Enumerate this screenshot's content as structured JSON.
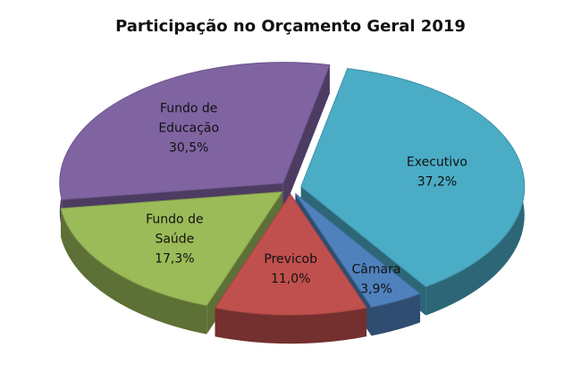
{
  "chart_data": {
    "type": "pie",
    "title": "Participação no Orçamento Geral 2019",
    "categories": [
      "Executivo",
      "Câmara",
      "Previcob",
      "Fundo de Saúde",
      "Fundo de Educação"
    ],
    "values": [
      37.2,
      3.9,
      11.0,
      17.3,
      30.5
    ],
    "value_labels": [
      "37,2%",
      "3,9%",
      "11,0%",
      "17,3%",
      "30,5%"
    ],
    "colors": [
      "#4bacc6",
      "#4f81bd",
      "#c0504d",
      "#9bbb59",
      "#8064a2"
    ]
  }
}
